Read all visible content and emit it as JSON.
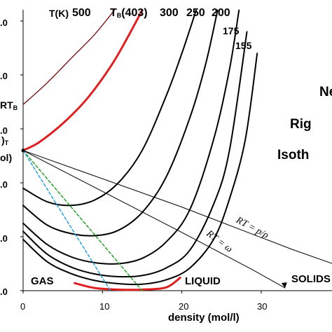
{
  "chart_data": {
    "type": "line",
    "xlabel": "density (mol/l)",
    "xlim": [
      0,
      36
    ],
    "ylim": [
      0,
      5.2
    ],
    "x_ticks": [
      "0",
      "10",
      "20",
      "30"
    ],
    "y_ticks": [
      ".0",
      ".0",
      ".0",
      ".0",
      ".0",
      ".0"
    ],
    "y_axis_fragments": [
      "RT",
      "B",
      ")",
      "T",
      "ol)"
    ],
    "temperature_header": {
      "tk": "T(K)",
      "t500": "500",
      "tb": "T",
      "tb_sub": "B",
      "tb_val": "(403)",
      "t300": "300",
      "t250": "250",
      "t200": "200",
      "t175": "175",
      "t155": "155"
    },
    "regions": {
      "gas": "GAS",
      "liquid": "LIQUID",
      "solids": "SOLIDS"
    },
    "side_text": [
      "Ne",
      "Rig",
      "Isoth"
    ],
    "line_annotations": {
      "rt_p_rho": "RT = p/ρ",
      "rt_omega": "RT = ω"
    },
    "series": [
      {
        "temperature_label": "500",
        "color": "#7a1a1a",
        "x": [
          0,
          3,
          6,
          9,
          11.5
        ],
        "y": [
          3.45,
          3.85,
          4.3,
          4.75,
          5.2
        ]
      },
      {
        "temperature_label": "T_B(403)",
        "color": "#e02020",
        "x": [
          0,
          2,
          5,
          8,
          11,
          13,
          15
        ],
        "y": [
          2.6,
          2.75,
          3.1,
          3.55,
          4.15,
          4.65,
          5.2
        ]
      },
      {
        "temperature_label": "300",
        "color": "#000000",
        "x": [
          0,
          3,
          6,
          9,
          12,
          15,
          18,
          20,
          21.8
        ],
        "y": [
          1.9,
          1.65,
          1.58,
          1.68,
          2.0,
          2.6,
          3.6,
          4.4,
          5.2
        ]
      },
      {
        "temperature_label": "250",
        "color": "#000000",
        "x": [
          0,
          3,
          6,
          9,
          12,
          15,
          18,
          21,
          23,
          24.5
        ],
        "y": [
          1.58,
          1.22,
          1.06,
          1.02,
          1.12,
          1.45,
          2.1,
          3.2,
          4.2,
          5.2
        ]
      },
      {
        "temperature_label": "200",
        "color": "#000000",
        "x": [
          0,
          3,
          6,
          9,
          12,
          15,
          18,
          21,
          24,
          26,
          27.2
        ],
        "y": [
          1.25,
          0.86,
          0.63,
          0.52,
          0.5,
          0.6,
          0.9,
          1.5,
          2.8,
          4.1,
          5.2
        ]
      },
      {
        "temperature_label": "175",
        "color": "#000000",
        "x": [
          0,
          3,
          6,
          9,
          12,
          15,
          18,
          21,
          24,
          26,
          28.2
        ],
        "y": [
          1.1,
          0.68,
          0.44,
          0.31,
          0.26,
          0.28,
          0.42,
          0.75,
          1.6,
          2.6,
          4.8
        ]
      },
      {
        "temperature_label": "155",
        "color": "#000000",
        "x": [
          0,
          3,
          6,
          9,
          12,
          15,
          18,
          21,
          24,
          26,
          28,
          29.5
        ],
        "y": [
          0.95,
          0.54,
          0.32,
          0.19,
          0.13,
          0.12,
          0.2,
          0.42,
          0.95,
          1.7,
          2.8,
          4.4
        ]
      },
      {
        "temperature_label": "coexistence",
        "color": "#e02020",
        "x": [
          6.5,
          9,
          12,
          15,
          18,
          19.8
        ],
        "y": [
          0.14,
          0.05,
          0.02,
          0.02,
          0.06,
          0.24
        ]
      },
      {
        "temperature_label": "RT = p/ρ",
        "color": "#000000",
        "x": [
          0,
          20,
          34,
          40
        ],
        "y": [
          2.6,
          1.55,
          0.76,
          0.45
        ]
      },
      {
        "temperature_label": "RT = ω",
        "color": "#000000",
        "x": [
          0,
          20,
          29,
          33
        ],
        "y": [
          2.6,
          1.08,
          0.38,
          0.05
        ]
      },
      {
        "temperature_label": "green-dashed",
        "color": "#2aa02a",
        "x": [
          0,
          15
        ],
        "y": [
          2.6,
          0.0
        ]
      },
      {
        "temperature_label": "blue-dashed",
        "color": "#2aa0d8",
        "x": [
          0,
          11
        ],
        "y": [
          2.6,
          0.0
        ]
      }
    ]
  }
}
